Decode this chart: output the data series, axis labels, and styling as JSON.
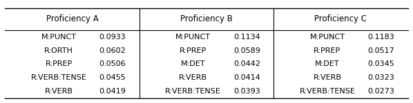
{
  "columns": [
    {
      "header": "Proficiency A",
      "rows": [
        [
          "M:PUNCT",
          "0.0933"
        ],
        [
          "R:ORTH",
          "0.0602"
        ],
        [
          "R:PREP",
          "0.0506"
        ],
        [
          "R:VERB:TENSE",
          "0.0455"
        ],
        [
          "R:VERB",
          "0.0419"
        ]
      ]
    },
    {
      "header": "Proficiency B",
      "rows": [
        [
          "M:PUNCT",
          "0.1134"
        ],
        [
          "R:PREP",
          "0.0589"
        ],
        [
          "M:DET",
          "0.0442"
        ],
        [
          "R:VERB",
          "0.0414"
        ],
        [
          "R:VERB:TENSE",
          "0.0393"
        ]
      ]
    },
    {
      "header": "Proficiency C",
      "rows": [
        [
          "M:PUNCT",
          "0.1183"
        ],
        [
          "R:PREP",
          "0.0517"
        ],
        [
          "M:DET",
          "0.0345"
        ],
        [
          "R:VERB",
          "0.0323"
        ],
        [
          "R:VERB:TENSE",
          "0.0273"
        ]
      ]
    }
  ],
  "font_size": 8.0,
  "header_font_size": 8.5
}
